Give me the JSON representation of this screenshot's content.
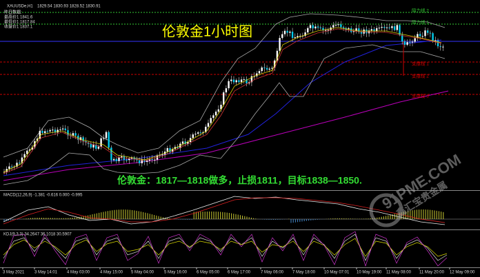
{
  "header": {
    "symbol": "XAUUSDe,H1",
    "ohlc": "1829.54 1830.93 1828.52 1830.91"
  },
  "info": [
    "昨日数据:",
    "最高价1 1841.6",
    "最低价1 1817.84",
    "收盘价1 1837.1"
  ],
  "title": "伦敦金1小时图",
  "levels": [
    "阻力线 2",
    "阻力线 1",
    "支撑线 1",
    "支撑线 2",
    "支撑线 3"
  ],
  "annotation": "伦敦金：1817—1818做多，止损1811，目标1838—1850.",
  "macd_label": "MACD(12,26,9) -1.381 -0.616 0.000 -0.995",
  "kdj_label": "KDJ(9,3,3) 34.2647 36.1018 30.5907",
  "x_labels": [
    "3 May 2021",
    "3 May 14:01",
    "4 May 03:00",
    "4 May 15:00",
    "5 May 04:00",
    "5 May 16:00",
    "6 May 05:00",
    "6 May 17:00",
    "7 May 06:00",
    "7 May 18:00",
    "10 May 07:01",
    "10 May 19:00",
    "11 May 08:00",
    "11 May 20:00",
    "12 May 09:00"
  ],
  "watermark": {
    "site": "91PME.COM",
    "brand": "鑫汇宝贵金属"
  }
}
